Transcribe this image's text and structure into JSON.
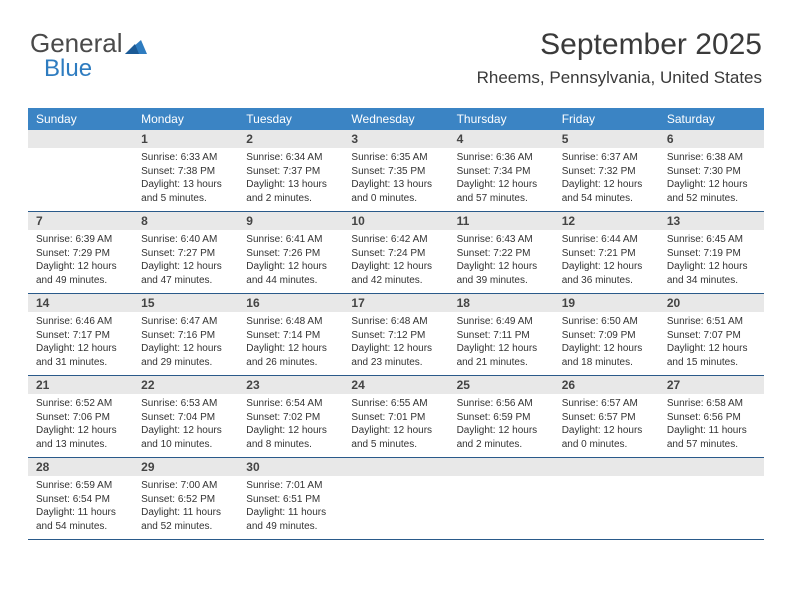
{
  "brand": {
    "part1": "General",
    "part2": "Blue",
    "part1_color": "#4a4a4a",
    "part2_color": "#2e7cc0"
  },
  "title": "September 2025",
  "location": "Rheems, Pennsylvania, United States",
  "header_bg": "#3b84c4",
  "daynum_bg": "#e8e8e8",
  "week_border": "#2a5a8a",
  "dayNames": [
    "Sunday",
    "Monday",
    "Tuesday",
    "Wednesday",
    "Thursday",
    "Friday",
    "Saturday"
  ],
  "weeks": [
    {
      "nums": [
        "",
        "1",
        "2",
        "3",
        "4",
        "5",
        "6"
      ],
      "cells": [
        null,
        {
          "sr": "Sunrise: 6:33 AM",
          "ss": "Sunset: 7:38 PM",
          "d1": "Daylight: 13 hours",
          "d2": "and 5 minutes."
        },
        {
          "sr": "Sunrise: 6:34 AM",
          "ss": "Sunset: 7:37 PM",
          "d1": "Daylight: 13 hours",
          "d2": "and 2 minutes."
        },
        {
          "sr": "Sunrise: 6:35 AM",
          "ss": "Sunset: 7:35 PM",
          "d1": "Daylight: 13 hours",
          "d2": "and 0 minutes."
        },
        {
          "sr": "Sunrise: 6:36 AM",
          "ss": "Sunset: 7:34 PM",
          "d1": "Daylight: 12 hours",
          "d2": "and 57 minutes."
        },
        {
          "sr": "Sunrise: 6:37 AM",
          "ss": "Sunset: 7:32 PM",
          "d1": "Daylight: 12 hours",
          "d2": "and 54 minutes."
        },
        {
          "sr": "Sunrise: 6:38 AM",
          "ss": "Sunset: 7:30 PM",
          "d1": "Daylight: 12 hours",
          "d2": "and 52 minutes."
        }
      ]
    },
    {
      "nums": [
        "7",
        "8",
        "9",
        "10",
        "11",
        "12",
        "13"
      ],
      "cells": [
        {
          "sr": "Sunrise: 6:39 AM",
          "ss": "Sunset: 7:29 PM",
          "d1": "Daylight: 12 hours",
          "d2": "and 49 minutes."
        },
        {
          "sr": "Sunrise: 6:40 AM",
          "ss": "Sunset: 7:27 PM",
          "d1": "Daylight: 12 hours",
          "d2": "and 47 minutes."
        },
        {
          "sr": "Sunrise: 6:41 AM",
          "ss": "Sunset: 7:26 PM",
          "d1": "Daylight: 12 hours",
          "d2": "and 44 minutes."
        },
        {
          "sr": "Sunrise: 6:42 AM",
          "ss": "Sunset: 7:24 PM",
          "d1": "Daylight: 12 hours",
          "d2": "and 42 minutes."
        },
        {
          "sr": "Sunrise: 6:43 AM",
          "ss": "Sunset: 7:22 PM",
          "d1": "Daylight: 12 hours",
          "d2": "and 39 minutes."
        },
        {
          "sr": "Sunrise: 6:44 AM",
          "ss": "Sunset: 7:21 PM",
          "d1": "Daylight: 12 hours",
          "d2": "and 36 minutes."
        },
        {
          "sr": "Sunrise: 6:45 AM",
          "ss": "Sunset: 7:19 PM",
          "d1": "Daylight: 12 hours",
          "d2": "and 34 minutes."
        }
      ]
    },
    {
      "nums": [
        "14",
        "15",
        "16",
        "17",
        "18",
        "19",
        "20"
      ],
      "cells": [
        {
          "sr": "Sunrise: 6:46 AM",
          "ss": "Sunset: 7:17 PM",
          "d1": "Daylight: 12 hours",
          "d2": "and 31 minutes."
        },
        {
          "sr": "Sunrise: 6:47 AM",
          "ss": "Sunset: 7:16 PM",
          "d1": "Daylight: 12 hours",
          "d2": "and 29 minutes."
        },
        {
          "sr": "Sunrise: 6:48 AM",
          "ss": "Sunset: 7:14 PM",
          "d1": "Daylight: 12 hours",
          "d2": "and 26 minutes."
        },
        {
          "sr": "Sunrise: 6:48 AM",
          "ss": "Sunset: 7:12 PM",
          "d1": "Daylight: 12 hours",
          "d2": "and 23 minutes."
        },
        {
          "sr": "Sunrise: 6:49 AM",
          "ss": "Sunset: 7:11 PM",
          "d1": "Daylight: 12 hours",
          "d2": "and 21 minutes."
        },
        {
          "sr": "Sunrise: 6:50 AM",
          "ss": "Sunset: 7:09 PM",
          "d1": "Daylight: 12 hours",
          "d2": "and 18 minutes."
        },
        {
          "sr": "Sunrise: 6:51 AM",
          "ss": "Sunset: 7:07 PM",
          "d1": "Daylight: 12 hours",
          "d2": "and 15 minutes."
        }
      ]
    },
    {
      "nums": [
        "21",
        "22",
        "23",
        "24",
        "25",
        "26",
        "27"
      ],
      "cells": [
        {
          "sr": "Sunrise: 6:52 AM",
          "ss": "Sunset: 7:06 PM",
          "d1": "Daylight: 12 hours",
          "d2": "and 13 minutes."
        },
        {
          "sr": "Sunrise: 6:53 AM",
          "ss": "Sunset: 7:04 PM",
          "d1": "Daylight: 12 hours",
          "d2": "and 10 minutes."
        },
        {
          "sr": "Sunrise: 6:54 AM",
          "ss": "Sunset: 7:02 PM",
          "d1": "Daylight: 12 hours",
          "d2": "and 8 minutes."
        },
        {
          "sr": "Sunrise: 6:55 AM",
          "ss": "Sunset: 7:01 PM",
          "d1": "Daylight: 12 hours",
          "d2": "and 5 minutes."
        },
        {
          "sr": "Sunrise: 6:56 AM",
          "ss": "Sunset: 6:59 PM",
          "d1": "Daylight: 12 hours",
          "d2": "and 2 minutes."
        },
        {
          "sr": "Sunrise: 6:57 AM",
          "ss": "Sunset: 6:57 PM",
          "d1": "Daylight: 12 hours",
          "d2": "and 0 minutes."
        },
        {
          "sr": "Sunrise: 6:58 AM",
          "ss": "Sunset: 6:56 PM",
          "d1": "Daylight: 11 hours",
          "d2": "and 57 minutes."
        }
      ]
    },
    {
      "nums": [
        "28",
        "29",
        "30",
        "",
        "",
        "",
        ""
      ],
      "cells": [
        {
          "sr": "Sunrise: 6:59 AM",
          "ss": "Sunset: 6:54 PM",
          "d1": "Daylight: 11 hours",
          "d2": "and 54 minutes."
        },
        {
          "sr": "Sunrise: 7:00 AM",
          "ss": "Sunset: 6:52 PM",
          "d1": "Daylight: 11 hours",
          "d2": "and 52 minutes."
        },
        {
          "sr": "Sunrise: 7:01 AM",
          "ss": "Sunset: 6:51 PM",
          "d1": "Daylight: 11 hours",
          "d2": "and 49 minutes."
        },
        null,
        null,
        null,
        null
      ]
    }
  ]
}
